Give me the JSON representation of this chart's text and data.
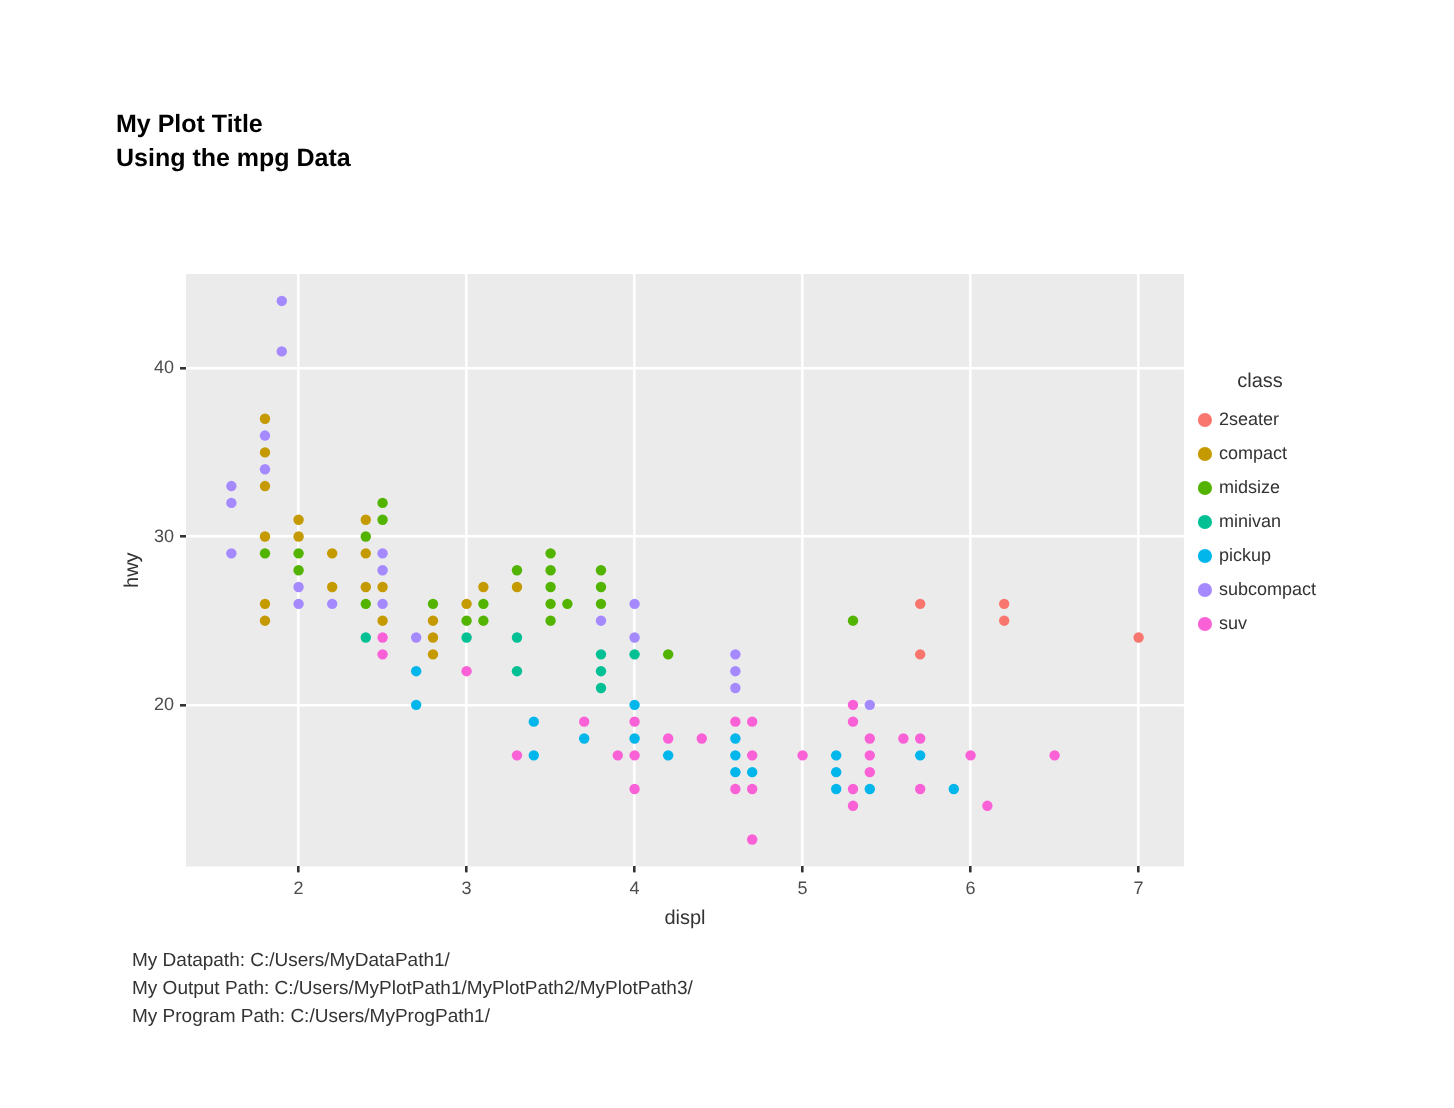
{
  "chart_data": {
    "type": "scatter",
    "title": "My Plot Title",
    "subtitle": "Using the mpg Data",
    "xlabel": "displ",
    "ylabel": "hwy",
    "legend_title": "class",
    "legend": "right",
    "marker": "circle",
    "grid": true,
    "xlim": [
      1.33,
      7.27
    ],
    "ylim": [
      10.4,
      45.6
    ],
    "xticks": [
      2,
      3,
      4,
      5,
      6,
      7
    ],
    "yticks": [
      20,
      30,
      40
    ],
    "series": [
      {
        "name": "2seater",
        "color": "#f8766d",
        "x": [
          5.7,
          5.7,
          6.2,
          6.2,
          7.0
        ],
        "values": [
          26,
          23,
          26,
          25,
          24
        ]
      },
      {
        "name": "compact",
        "color": "#c49a00",
        "x": [
          1.8,
          1.8,
          1.8,
          1.8,
          1.8,
          1.8,
          2.0,
          2.0,
          2.2,
          2.2,
          2.4,
          2.4,
          2.4,
          2.5,
          2.5,
          2.8,
          2.8,
          2.8,
          3.0,
          3.1,
          3.3
        ],
        "values": [
          37,
          35,
          33,
          30,
          26,
          25,
          31,
          30,
          29,
          27,
          31,
          29,
          27,
          27,
          25,
          25,
          24,
          23,
          26,
          27,
          27
        ]
      },
      {
        "name": "midsize",
        "color": "#53b400",
        "x": [
          1.8,
          2.0,
          2.0,
          2.4,
          2.4,
          2.5,
          2.5,
          2.8,
          3.0,
          3.1,
          3.1,
          3.3,
          3.5,
          3.5,
          3.5,
          3.5,
          3.5,
          3.6,
          3.8,
          3.8,
          3.8,
          4.2,
          5.3
        ],
        "values": [
          29,
          29,
          28,
          30,
          26,
          32,
          31,
          26,
          25,
          26,
          25,
          28,
          29,
          28,
          27,
          26,
          25,
          26,
          28,
          27,
          26,
          23,
          25
        ]
      },
      {
        "name": "minivan",
        "color": "#00c094",
        "x": [
          2.4,
          3.0,
          3.3,
          3.3,
          3.8,
          3.8,
          3.8,
          4.0
        ],
        "values": [
          24,
          24,
          24,
          22,
          23,
          22,
          21,
          23
        ]
      },
      {
        "name": "pickup",
        "color": "#00b6eb",
        "x": [
          2.7,
          2.7,
          3.4,
          3.4,
          3.7,
          4.0,
          4.0,
          4.2,
          4.6,
          4.6,
          4.6,
          4.7,
          5.2,
          5.2,
          5.2,
          5.4,
          5.7,
          5.9
        ],
        "values": [
          22,
          20,
          19,
          17,
          18,
          20,
          18,
          17,
          18,
          17,
          16,
          16,
          17,
          16,
          15,
          15,
          17,
          15
        ]
      },
      {
        "name": "subcompact",
        "color": "#a58aff",
        "x": [
          1.6,
          1.6,
          1.6,
          1.8,
          1.8,
          1.9,
          1.9,
          2.0,
          2.0,
          2.2,
          2.5,
          2.5,
          2.5,
          2.7,
          3.8,
          4.0,
          4.0,
          4.6,
          4.6,
          4.6,
          5.4
        ],
        "values": [
          33,
          32,
          29,
          36,
          34,
          44,
          41,
          27,
          26,
          26,
          29,
          28,
          26,
          24,
          25,
          26,
          24,
          23,
          22,
          21,
          20
        ]
      },
      {
        "name": "suv",
        "color": "#fb61d7",
        "x": [
          2.5,
          2.5,
          3.0,
          3.3,
          3.7,
          3.9,
          4.0,
          4.0,
          4.0,
          4.2,
          4.4,
          4.6,
          4.6,
          4.7,
          4.7,
          4.7,
          4.7,
          5.0,
          5.3,
          5.3,
          5.3,
          5.3,
          5.4,
          5.4,
          5.4,
          5.6,
          5.7,
          5.7,
          6.0,
          6.1,
          6.5
        ],
        "values": [
          24,
          23,
          22,
          17,
          19,
          17,
          19,
          17,
          15,
          18,
          18,
          19,
          15,
          19,
          17,
          15,
          12,
          17,
          20,
          19,
          15,
          14,
          18,
          17,
          16,
          18,
          18,
          15,
          17,
          14,
          17
        ]
      }
    ],
    "annotations": [
      "My Datapath: C:/Users/MyDataPath1/",
      "My Output Path: C:/Users/MyPlotPath1/MyPlotPath2/MyPlotPath3/",
      "My Program Path: C:/Users/MyProgPath1/"
    ]
  }
}
